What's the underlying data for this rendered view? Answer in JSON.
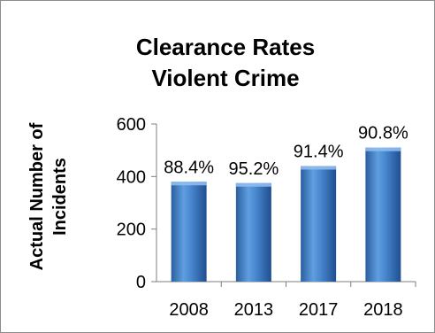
{
  "chart_data": {
    "type": "bar",
    "title_lines": [
      "Clearance Rates",
      "Violent Crime"
    ],
    "ylabel_lines": [
      "Actual Number of",
      "Incidents"
    ],
    "xlabel": "",
    "categories": [
      "2008",
      "2013",
      "2017",
      "2018"
    ],
    "values": [
      380,
      375,
      440,
      510
    ],
    "data_labels": [
      "88.4%",
      "95.2%",
      "91.4%",
      "90.8%"
    ],
    "ylim": [
      0,
      600
    ],
    "yticks": [
      0,
      200,
      400,
      600
    ],
    "grid": false,
    "legend": "none",
    "colors": {
      "bar": "#3f7fc8",
      "bar_dark": "#1f4f8f",
      "bar_light": "#8fbcf0",
      "axis": "#7f7f7f"
    }
  }
}
